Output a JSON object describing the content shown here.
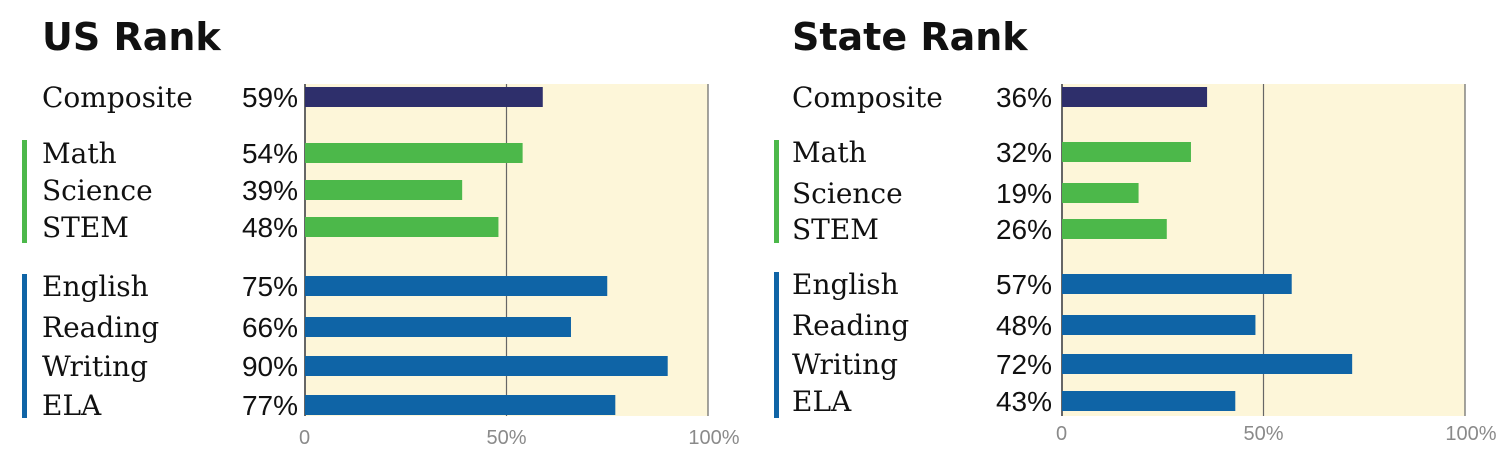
{
  "colors": {
    "composite": "#2e2f6b",
    "stem": "#4cb84a",
    "ela": "#0f64a6",
    "panel_bg": "#fdf6d9",
    "grid": "#666666"
  },
  "chart_data": [
    {
      "type": "bar",
      "orientation": "horizontal",
      "title": "US Rank",
      "xlim": [
        0,
        100
      ],
      "ticks": [
        "0",
        "50%",
        "100%"
      ],
      "tick_values": [
        0,
        50,
        100
      ],
      "groups": [
        {
          "color_key": "composite",
          "items": [
            {
              "label": "Composite",
              "value": 59,
              "value_label": "59%"
            }
          ]
        },
        {
          "color_key": "stem",
          "items": [
            {
              "label": "Math",
              "value": 54,
              "value_label": "54%"
            },
            {
              "label": "Science",
              "value": 39,
              "value_label": "39%"
            },
            {
              "label": "STEM",
              "value": 48,
              "value_label": "48%"
            }
          ]
        },
        {
          "color_key": "ela",
          "items": [
            {
              "label": "English",
              "value": 75,
              "value_label": "75%"
            },
            {
              "label": "Reading",
              "value": 66,
              "value_label": "66%"
            },
            {
              "label": "Writing",
              "value": 90,
              "value_label": "90%"
            },
            {
              "label": "ELA",
              "value": 77,
              "value_label": "77%"
            }
          ]
        }
      ]
    },
    {
      "type": "bar",
      "orientation": "horizontal",
      "title": "State Rank",
      "xlim": [
        0,
        100
      ],
      "ticks": [
        "0",
        "50%",
        "100%"
      ],
      "tick_values": [
        0,
        50,
        100
      ],
      "groups": [
        {
          "color_key": "composite",
          "items": [
            {
              "label": "Composite",
              "value": 36,
              "value_label": "36%"
            }
          ]
        },
        {
          "color_key": "stem",
          "items": [
            {
              "label": "Math",
              "value": 32,
              "value_label": "32%"
            },
            {
              "label": "Science",
              "value": 19,
              "value_label": "19%"
            },
            {
              "label": "STEM",
              "value": 26,
              "value_label": "26%"
            }
          ]
        },
        {
          "color_key": "ela",
          "items": [
            {
              "label": "English",
              "value": 57,
              "value_label": "57%"
            },
            {
              "label": "Reading",
              "value": 48,
              "value_label": "48%"
            },
            {
              "label": "Writing",
              "value": 72,
              "value_label": "72%"
            },
            {
              "label": "ELA",
              "value": 43,
              "value_label": "43%"
            }
          ]
        }
      ]
    }
  ]
}
